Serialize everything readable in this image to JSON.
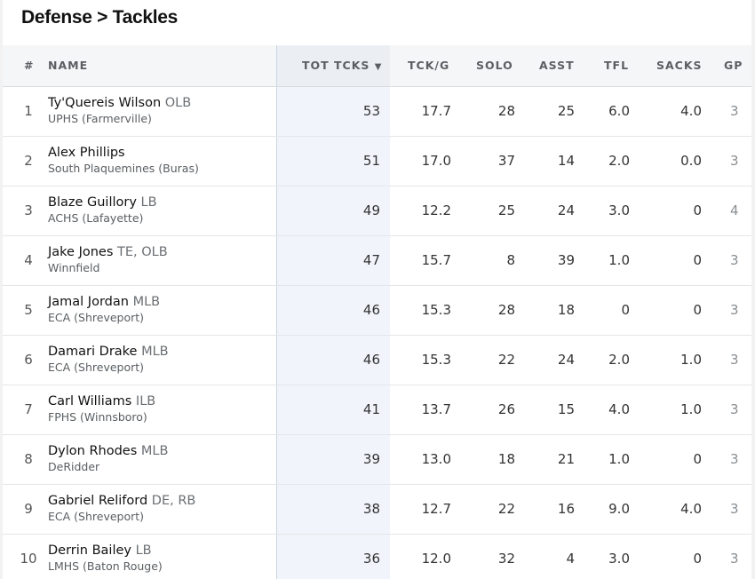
{
  "page_title": "Defense > Tackles",
  "columns": {
    "rank": "#",
    "name": "NAME",
    "tot_tcks": "TOT TCKS",
    "sort_indicator": "▼",
    "tck_g": "TCK/G",
    "solo": "SOLO",
    "asst": "ASST",
    "tfl": "TFL",
    "sacks": "SACKS",
    "gp": "GP"
  },
  "rows": [
    {
      "rank": "1",
      "name": "Ty'Quereis Wilson",
      "pos": "OLB",
      "school": "UPHS (Farmerville)",
      "tot": "53",
      "tckg": "17.7",
      "solo": "28",
      "asst": "25",
      "tfl": "6.0",
      "sacks": "4.0",
      "gp": "3"
    },
    {
      "rank": "2",
      "name": "Alex Phillips",
      "pos": "",
      "school": "South Plaquemines (Buras)",
      "tot": "51",
      "tckg": "17.0",
      "solo": "37",
      "asst": "14",
      "tfl": "2.0",
      "sacks": "0.0",
      "gp": "3"
    },
    {
      "rank": "3",
      "name": "Blaze Guillory",
      "pos": "LB",
      "school": "ACHS (Lafayette)",
      "tot": "49",
      "tckg": "12.2",
      "solo": "25",
      "asst": "24",
      "tfl": "3.0",
      "sacks": "0",
      "gp": "4"
    },
    {
      "rank": "4",
      "name": "Jake Jones",
      "pos": "TE, OLB",
      "school": "Winnfield",
      "tot": "47",
      "tckg": "15.7",
      "solo": "8",
      "asst": "39",
      "tfl": "1.0",
      "sacks": "0",
      "gp": "3"
    },
    {
      "rank": "5",
      "name": "Jamal Jordan",
      "pos": "MLB",
      "school": "ECA (Shreveport)",
      "tot": "46",
      "tckg": "15.3",
      "solo": "28",
      "asst": "18",
      "tfl": "0",
      "sacks": "0",
      "gp": "3"
    },
    {
      "rank": "6",
      "name": "Damari Drake",
      "pos": "MLB",
      "school": "ECA (Shreveport)",
      "tot": "46",
      "tckg": "15.3",
      "solo": "22",
      "asst": "24",
      "tfl": "2.0",
      "sacks": "1.0",
      "gp": "3"
    },
    {
      "rank": "7",
      "name": "Carl Williams",
      "pos": "ILB",
      "school": "FPHS (Winnsboro)",
      "tot": "41",
      "tckg": "13.7",
      "solo": "26",
      "asst": "15",
      "tfl": "4.0",
      "sacks": "1.0",
      "gp": "3"
    },
    {
      "rank": "8",
      "name": "Dylon Rhodes",
      "pos": "MLB",
      "school": "DeRidder",
      "tot": "39",
      "tckg": "13.0",
      "solo": "18",
      "asst": "21",
      "tfl": "1.0",
      "sacks": "0",
      "gp": "3"
    },
    {
      "rank": "9",
      "name": "Gabriel Reliford",
      "pos": "DE, RB",
      "school": "ECA (Shreveport)",
      "tot": "38",
      "tckg": "12.7",
      "solo": "22",
      "asst": "16",
      "tfl": "9.0",
      "sacks": "4.0",
      "gp": "3"
    },
    {
      "rank": "10",
      "name": "Derrin Bailey",
      "pos": "LB",
      "school": "LMHS (Baton Rouge)",
      "tot": "36",
      "tckg": "12.0",
      "solo": "32",
      "asst": "4",
      "tfl": "3.0",
      "sacks": "0",
      "gp": "3"
    }
  ]
}
